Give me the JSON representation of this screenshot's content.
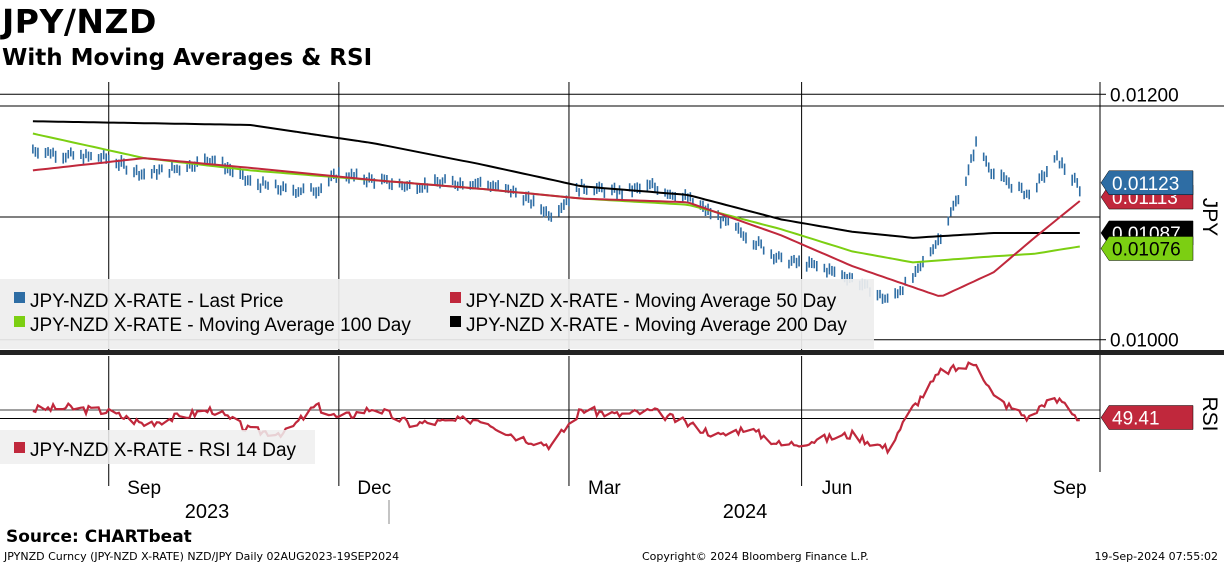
{
  "header": {
    "title": "JPY/NZD",
    "subtitle": "With Moving Averages & RSI"
  },
  "footer": {
    "source": "Source: CHARTbeat",
    "left": "JPYNZD Curncy (JPY-NZD X-RATE) NZD/JPY  Daily 02AUG2023-19SEP2024",
    "middle": "Copyright© 2024 Bloomberg Finance L.P.",
    "right": "19-Sep-2024 07:55:02"
  },
  "colors": {
    "price": "#2e6da4",
    "ma50": "#c0283c",
    "ma100": "#7ccf12",
    "ma200": "#000000",
    "rsi": "#c0283c"
  },
  "chart_data": [
    {
      "type": "line",
      "panel": "price",
      "ylabel": "JPY",
      "ylim": [
        0.0099,
        0.0121
      ],
      "yticks": [
        "0.01200",
        "0.01000"
      ],
      "x_month_ticks": [
        "Sep",
        "Dec",
        "Mar",
        "Jun",
        "Sep"
      ],
      "x_year_labels": [
        "2023",
        "2024"
      ],
      "grid": true,
      "legend_position": "bottom-left",
      "last_value_tags": [
        {
          "series": "JPY-NZD X-RATE - Last Price",
          "value": "0.01123"
        },
        {
          "series": "JPY-NZD X-RATE - Moving Average 50 Day",
          "value": "0.01113"
        },
        {
          "series": "JPY-NZD X-RATE - Moving Average 200 Day",
          "value": "0.01087"
        },
        {
          "series": "JPY-NZD X-RATE - Moving Average 100 Day",
          "value": "0.01076"
        }
      ],
      "series": [
        {
          "name": "JPY-NZD X-RATE - Last Price",
          "kind": "bars",
          "color": "price",
          "points": [
            [
              "2023-08-02",
              0.01155
            ],
            [
              "2023-08-16",
              0.0115
            ],
            [
              "2023-08-31",
              0.01148
            ],
            [
              "2023-09-15",
              0.01135
            ],
            [
              "2023-09-29",
              0.0114
            ],
            [
              "2023-10-12",
              0.01148
            ],
            [
              "2023-10-27",
              0.01128
            ],
            [
              "2023-11-10",
              0.01122
            ],
            [
              "2023-11-22",
              0.01122
            ],
            [
              "2023-12-01",
              0.01135
            ],
            [
              "2023-12-15",
              0.0113
            ],
            [
              "2023-12-29",
              0.01125
            ],
            [
              "2024-01-12",
              0.01128
            ],
            [
              "2024-01-26",
              0.01128
            ],
            [
              "2024-02-09",
              0.0112
            ],
            [
              "2024-02-23",
              0.01102
            ],
            [
              "2024-03-06",
              0.01125
            ],
            [
              "2024-03-20",
              0.0112
            ],
            [
              "2024-04-03",
              0.01125
            ],
            [
              "2024-04-17",
              0.01115
            ],
            [
              "2024-04-30",
              0.01098
            ],
            [
              "2024-05-10",
              0.01085
            ],
            [
              "2024-05-24",
              0.01065
            ],
            [
              "2024-06-07",
              0.0106
            ],
            [
              "2024-06-21",
              0.0105
            ],
            [
              "2024-07-05",
              0.01032
            ],
            [
              "2024-07-15",
              0.0105
            ],
            [
              "2024-07-26",
              0.01085
            ],
            [
              "2024-08-05",
              0.0113
            ],
            [
              "2024-08-09",
              0.0116
            ],
            [
              "2024-08-16",
              0.01135
            ],
            [
              "2024-08-30",
              0.01118
            ],
            [
              "2024-09-10",
              0.01148
            ],
            [
              "2024-09-19",
              0.01123
            ]
          ]
        },
        {
          "name": "JPY-NZD X-RATE - Moving Average 50 Day",
          "kind": "line",
          "color": "ma50",
          "points": [
            [
              "2023-08-02",
              0.01138
            ],
            [
              "2023-09-15",
              0.01148
            ],
            [
              "2023-10-27",
              0.0114
            ],
            [
              "2023-12-15",
              0.0113
            ],
            [
              "2024-01-26",
              0.01123
            ],
            [
              "2024-03-06",
              0.01115
            ],
            [
              "2024-04-17",
              0.01112
            ],
            [
              "2024-05-24",
              0.01085
            ],
            [
              "2024-06-21",
              0.0106
            ],
            [
              "2024-07-26",
              0.01035
            ],
            [
              "2024-08-16",
              0.01055
            ],
            [
              "2024-09-01",
              0.01083
            ],
            [
              "2024-09-19",
              0.01113
            ]
          ]
        },
        {
          "name": "JPY-NZD X-RATE - Moving Average 100 Day",
          "kind": "line",
          "color": "ma100",
          "points": [
            [
              "2023-08-02",
              0.01168
            ],
            [
              "2023-09-15",
              0.01148
            ],
            [
              "2023-10-27",
              0.01138
            ],
            [
              "2023-12-15",
              0.0113
            ],
            [
              "2024-01-26",
              0.01123
            ],
            [
              "2024-03-06",
              0.01115
            ],
            [
              "2024-04-17",
              0.0111
            ],
            [
              "2024-05-24",
              0.0109
            ],
            [
              "2024-06-21",
              0.01072
            ],
            [
              "2024-07-15",
              0.01063
            ],
            [
              "2024-08-16",
              0.01068
            ],
            [
              "2024-09-01",
              0.0107
            ],
            [
              "2024-09-19",
              0.01076
            ]
          ]
        },
        {
          "name": "JPY-NZD X-RATE - Moving Average 200 Day",
          "kind": "line",
          "color": "ma200",
          "points": [
            [
              "2023-08-02",
              0.01178
            ],
            [
              "2023-10-27",
              0.01175
            ],
            [
              "2023-12-15",
              0.0116
            ],
            [
              "2024-01-26",
              0.01143
            ],
            [
              "2024-03-06",
              0.01125
            ],
            [
              "2024-04-17",
              0.01118
            ],
            [
              "2024-05-24",
              0.01098
            ],
            [
              "2024-06-21",
              0.01088
            ],
            [
              "2024-07-15",
              0.01083
            ],
            [
              "2024-08-16",
              0.01087
            ],
            [
              "2024-09-19",
              0.01087
            ]
          ]
        }
      ]
    },
    {
      "type": "line",
      "panel": "rsi",
      "ylabel": "RSI",
      "ylim": [
        20,
        85
      ],
      "legend_position": "bottom-left",
      "last_value_tags": [
        {
          "series": "JPY-NZD X-RATE - RSI 14 Day",
          "value": "49.41"
        }
      ],
      "series": [
        {
          "name": "JPY-NZD X-RATE - RSI 14 Day",
          "kind": "line",
          "color": "rsi",
          "points": [
            [
              "2023-08-02",
              55
            ],
            [
              "2023-08-16",
              56
            ],
            [
              "2023-08-31",
              54
            ],
            [
              "2023-09-15",
              47
            ],
            [
              "2023-09-29",
              51
            ],
            [
              "2023-10-12",
              55
            ],
            [
              "2023-10-27",
              43
            ],
            [
              "2023-11-10",
              42
            ],
            [
              "2023-11-22",
              57
            ],
            [
              "2023-12-01",
              50
            ],
            [
              "2023-12-15",
              56
            ],
            [
              "2023-12-29",
              47
            ],
            [
              "2024-01-12",
              48
            ],
            [
              "2024-01-26",
              50
            ],
            [
              "2024-02-09",
              40
            ],
            [
              "2024-02-23",
              35
            ],
            [
              "2024-03-06",
              55
            ],
            [
              "2024-03-20",
              52
            ],
            [
              "2024-04-03",
              54
            ],
            [
              "2024-04-17",
              47
            ],
            [
              "2024-04-30",
              40
            ],
            [
              "2024-05-10",
              45
            ],
            [
              "2024-05-24",
              35
            ],
            [
              "2024-06-07",
              38
            ],
            [
              "2024-06-21",
              41
            ],
            [
              "2024-07-05",
              33
            ],
            [
              "2024-07-15",
              56
            ],
            [
              "2024-07-26",
              76
            ],
            [
              "2024-08-05",
              79
            ],
            [
              "2024-08-09",
              82
            ],
            [
              "2024-08-16",
              62
            ],
            [
              "2024-08-30",
              50
            ],
            [
              "2024-09-05",
              59
            ],
            [
              "2024-09-12",
              60
            ],
            [
              "2024-09-19",
              49.41
            ]
          ]
        }
      ]
    }
  ]
}
